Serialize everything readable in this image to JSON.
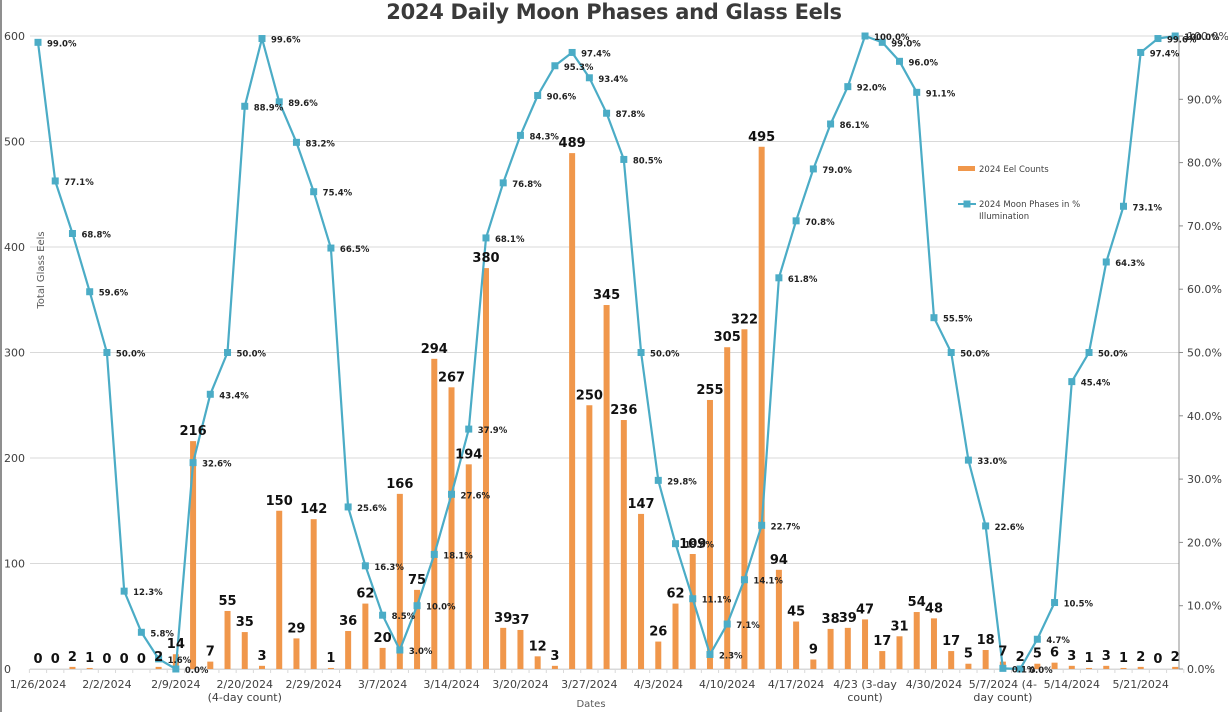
{
  "chart_data": {
    "type": "bar+line",
    "title": "2024 Daily Moon Phases and Glass Eels",
    "xlabel": "Dates",
    "ylabel": "Total Glass Eels",
    "y2label": "",
    "ylim": [
      0,
      600
    ],
    "y2lim": [
      0,
      100
    ],
    "grid": true,
    "legend_position": "right-inside",
    "yticks": [
      "0",
      "100",
      "200",
      "300",
      "400",
      "500",
      "600"
    ],
    "y2ticks": [
      "0.0%",
      "10.0%",
      "20.0%",
      "30.0%",
      "40.0%",
      "50.0%",
      "60.0%",
      "70.0%",
      "80.0%",
      "90.0%",
      "100.0%"
    ],
    "x_tick_labels": [
      {
        "index": 0,
        "label": "1/26/2024"
      },
      {
        "index": 4,
        "label": "2/2/2024"
      },
      {
        "index": 8,
        "label": "2/9/2024"
      },
      {
        "index": 12,
        "label": "2/20/2024\n(4-day count)"
      },
      {
        "index": 16,
        "label": "2/29/2024"
      },
      {
        "index": 20,
        "label": "3/7/2024"
      },
      {
        "index": 24,
        "label": "3/14/2024"
      },
      {
        "index": 28,
        "label": "3/20/2024"
      },
      {
        "index": 32,
        "label": "3/27/2024"
      },
      {
        "index": 36,
        "label": "4/3/2024"
      },
      {
        "index": 40,
        "label": "4/10/2024"
      },
      {
        "index": 44,
        "label": "4/17/2024"
      },
      {
        "index": 48,
        "label": "4/23 (3-day\ncount)"
      },
      {
        "index": 52,
        "label": "4/30/2024"
      },
      {
        "index": 56,
        "label": "5/7/2024 (4-\nday count)"
      },
      {
        "index": 60,
        "label": "5/14/2024"
      },
      {
        "index": 64,
        "label": "5/21/2024"
      }
    ],
    "series": [
      {
        "name": "2024 Eel Counts",
        "type": "bar",
        "color": "#F0974B",
        "values": [
          0,
          0,
          2,
          1,
          0,
          0,
          0,
          2,
          14,
          216,
          7,
          55,
          35,
          3,
          150,
          29,
          142,
          1,
          36,
          62,
          20,
          166,
          75,
          294,
          267,
          194,
          380,
          39,
          37,
          12,
          3,
          489,
          250,
          345,
          236,
          147,
          26,
          62,
          109,
          255,
          305,
          322,
          495,
          94,
          45,
          9,
          38,
          39,
          47,
          17,
          31,
          54,
          48,
          17,
          5,
          18,
          7,
          2,
          5,
          6,
          3,
          1,
          3,
          1,
          2,
          0,
          2
        ]
      },
      {
        "name": "2024 Moon Phases in % Illumination",
        "type": "line",
        "color": "#4BACC6",
        "marker": "square",
        "values": [
          99.0,
          77.1,
          68.8,
          59.6,
          50.0,
          12.3,
          5.8,
          1.6,
          0.0,
          32.6,
          43.4,
          50.0,
          88.9,
          99.6,
          89.6,
          83.2,
          75.4,
          66.5,
          25.6,
          16.3,
          8.5,
          3.0,
          10.0,
          18.1,
          27.6,
          37.9,
          68.1,
          76.8,
          84.3,
          90.6,
          95.3,
          97.4,
          93.4,
          87.8,
          80.5,
          50.0,
          29.8,
          19.8,
          11.1,
          2.3,
          7.1,
          14.1,
          22.7,
          61.8,
          70.8,
          79.0,
          86.1,
          92.0,
          100.0,
          99.0,
          96.0,
          91.1,
          55.5,
          50.0,
          33.0,
          22.6,
          0.1,
          0.0,
          4.7,
          10.5,
          45.4,
          50.0,
          64.3,
          73.1,
          97.4,
          99.6,
          100.0
        ]
      }
    ]
  },
  "legend": {
    "items": [
      {
        "label": "2024 Eel Counts"
      },
      {
        "label_line1": "2024 Moon Phases in %",
        "label_line2": "Illumination"
      }
    ]
  }
}
